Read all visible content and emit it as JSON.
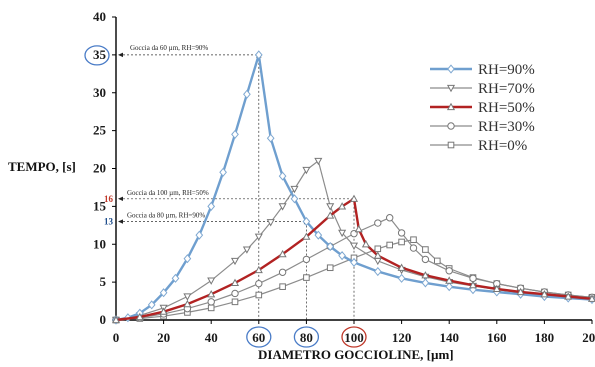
{
  "chart_data": {
    "type": "line",
    "xlabel": "DIAMETRO GOCCIOLINE, [µm]",
    "ylabel": "TEMPO, [s]",
    "xlim": [
      0,
      200
    ],
    "ylim": [
      0,
      40
    ],
    "xticks": [
      "0",
      "20",
      "40",
      "60",
      "80",
      "100",
      "120",
      "140",
      "160",
      "180",
      "200"
    ],
    "yticks": [
      "0",
      "5",
      "10",
      "15",
      "20",
      "25",
      "30",
      "35",
      "40"
    ],
    "grid": false,
    "legend_position": "top-right",
    "series": [
      {
        "name": "RH=90%",
        "color": "#6f9fcf",
        "marker": "diamond",
        "x": [
          0,
          5,
          10,
          15,
          20,
          25,
          30,
          35,
          40,
          45,
          50,
          55,
          60,
          65,
          70,
          75,
          80,
          85,
          90,
          95,
          100,
          110,
          120,
          130,
          140,
          150,
          160,
          170,
          180,
          190,
          200
        ],
        "y": [
          0,
          0.3,
          0.9,
          2,
          3.6,
          5.5,
          8.1,
          11.2,
          15,
          19.5,
          24.5,
          29.8,
          35,
          24,
          19,
          16,
          13,
          11.2,
          9.7,
          8.5,
          7.6,
          6.4,
          5.5,
          4.9,
          4.4,
          4,
          3.7,
          3.4,
          3.1,
          2.9,
          2.7
        ]
      },
      {
        "name": "RH=70%",
        "color": "#8c8c8c",
        "marker": "triangle-down",
        "x": [
          0,
          10,
          20,
          30,
          40,
          50,
          55,
          60,
          65,
          70,
          75,
          80,
          85,
          90,
          95,
          100,
          110,
          120,
          130,
          140,
          150,
          160,
          170,
          180,
          190,
          200
        ],
        "y": [
          0,
          0.6,
          1.6,
          3.1,
          5.2,
          7.8,
          9.3,
          11,
          12.9,
          15,
          17.3,
          19.8,
          21,
          15,
          11.5,
          9.8,
          7.8,
          6.6,
          5.7,
          5,
          4.5,
          4,
          3.6,
          3.3,
          3,
          2.8
        ]
      },
      {
        "name": "RH=50%",
        "color": "#b22222",
        "marker": "triangle-up",
        "x": [
          0,
          10,
          20,
          30,
          40,
          50,
          60,
          70,
          80,
          90,
          95,
          100,
          102,
          105,
          110,
          120,
          130,
          140,
          150,
          160,
          170,
          180,
          190,
          200
        ],
        "y": [
          0,
          0.4,
          1.1,
          2.1,
          3.4,
          4.9,
          6.6,
          8.7,
          11,
          13.8,
          15,
          16,
          12,
          10,
          8.5,
          6.9,
          5.9,
          5.2,
          4.6,
          4.1,
          3.7,
          3.4,
          3.1,
          2.8
        ]
      },
      {
        "name": "RH=30%",
        "color": "#8c8c8c",
        "marker": "circle",
        "x": [
          0,
          10,
          20,
          30,
          40,
          50,
          60,
          70,
          80,
          90,
          100,
          110,
          115,
          120,
          125,
          130,
          140,
          150,
          160,
          170,
          180,
          190,
          200
        ],
        "y": [
          0,
          0.3,
          0.8,
          1.5,
          2.4,
          3.5,
          4.8,
          6.3,
          8,
          9.7,
          11.4,
          12.8,
          13.5,
          11.5,
          9.5,
          8,
          6.5,
          5.5,
          4.8,
          4.2,
          3.7,
          3.3,
          3
        ]
      },
      {
        "name": "RH=0%",
        "color": "#8c8c8c",
        "marker": "square",
        "x": [
          0,
          10,
          20,
          30,
          40,
          50,
          60,
          70,
          80,
          90,
          100,
          110,
          115,
          120,
          125,
          130,
          135,
          140,
          150,
          160,
          170,
          180,
          190,
          200
        ],
        "y": [
          0,
          0.2,
          0.5,
          1,
          1.6,
          2.4,
          3.3,
          4.4,
          5.6,
          6.9,
          8.2,
          9.4,
          9.9,
          10.3,
          10.6,
          9.3,
          7.8,
          6.8,
          5.6,
          4.8,
          4.2,
          3.7,
          3.3,
          3
        ]
      }
    ],
    "annotations": [
      {
        "text": "Goccia da 60 µm, RH=90%",
        "x": 60,
        "y": 35
      },
      {
        "text": "Goccia da 100 µm, RH=50%",
        "x": 100,
        "y": 16
      },
      {
        "text": "Goccia da 80 µm, RH=90%",
        "x": 80,
        "y": 13
      }
    ],
    "axis_markers": [
      {
        "text": "35",
        "color": "#4a7cc7",
        "axis": "y"
      },
      {
        "text": "16",
        "color": "#c0392b",
        "axis": "y"
      },
      {
        "text": "13",
        "color": "#1f4e8c",
        "axis": "y"
      }
    ],
    "circled_x_ticks": [
      {
        "value": "60",
        "color": "#4a7cc7"
      },
      {
        "value": "80",
        "color": "#4a7cc7"
      },
      {
        "value": "100",
        "color": "#c0392b"
      }
    ]
  }
}
